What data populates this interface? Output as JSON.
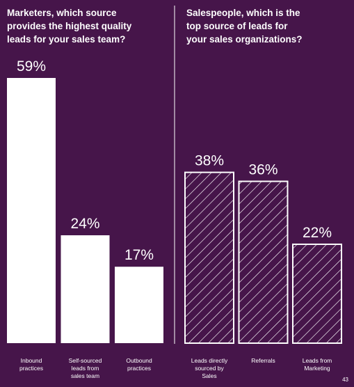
{
  "chart_data": [
    {
      "type": "bar",
      "title": "Marketers, which source\nprovides the highest quality\nleads for your sales team?",
      "categories": [
        "Inbound\npractices",
        "Self-sourced\nleads from\nsales team",
        "Outbound\npractices"
      ],
      "values": [
        59,
        24,
        17
      ],
      "value_labels": [
        "59%",
        "24%",
        "17%"
      ],
      "fill": "solid",
      "color": "#ffffff",
      "ylim": [
        0,
        59
      ],
      "grid": false,
      "legend": "none"
    },
    {
      "type": "bar",
      "title": "Salespeople, which is the\ntop source of leads for\nyour sales organizations?",
      "categories": [
        "Leads directly\nsourced by\nSales",
        "Referrals",
        "Leads from\nMarketing"
      ],
      "values": [
        38,
        36,
        22
      ],
      "value_labels": [
        "38%",
        "36%",
        "22%"
      ],
      "fill": "hatched",
      "color": "#ffffff",
      "ylim": [
        0,
        59
      ],
      "grid": false,
      "legend": "none"
    }
  ],
  "colors": {
    "background": "#46154a",
    "bar": "#ffffff"
  },
  "page_number": "43"
}
